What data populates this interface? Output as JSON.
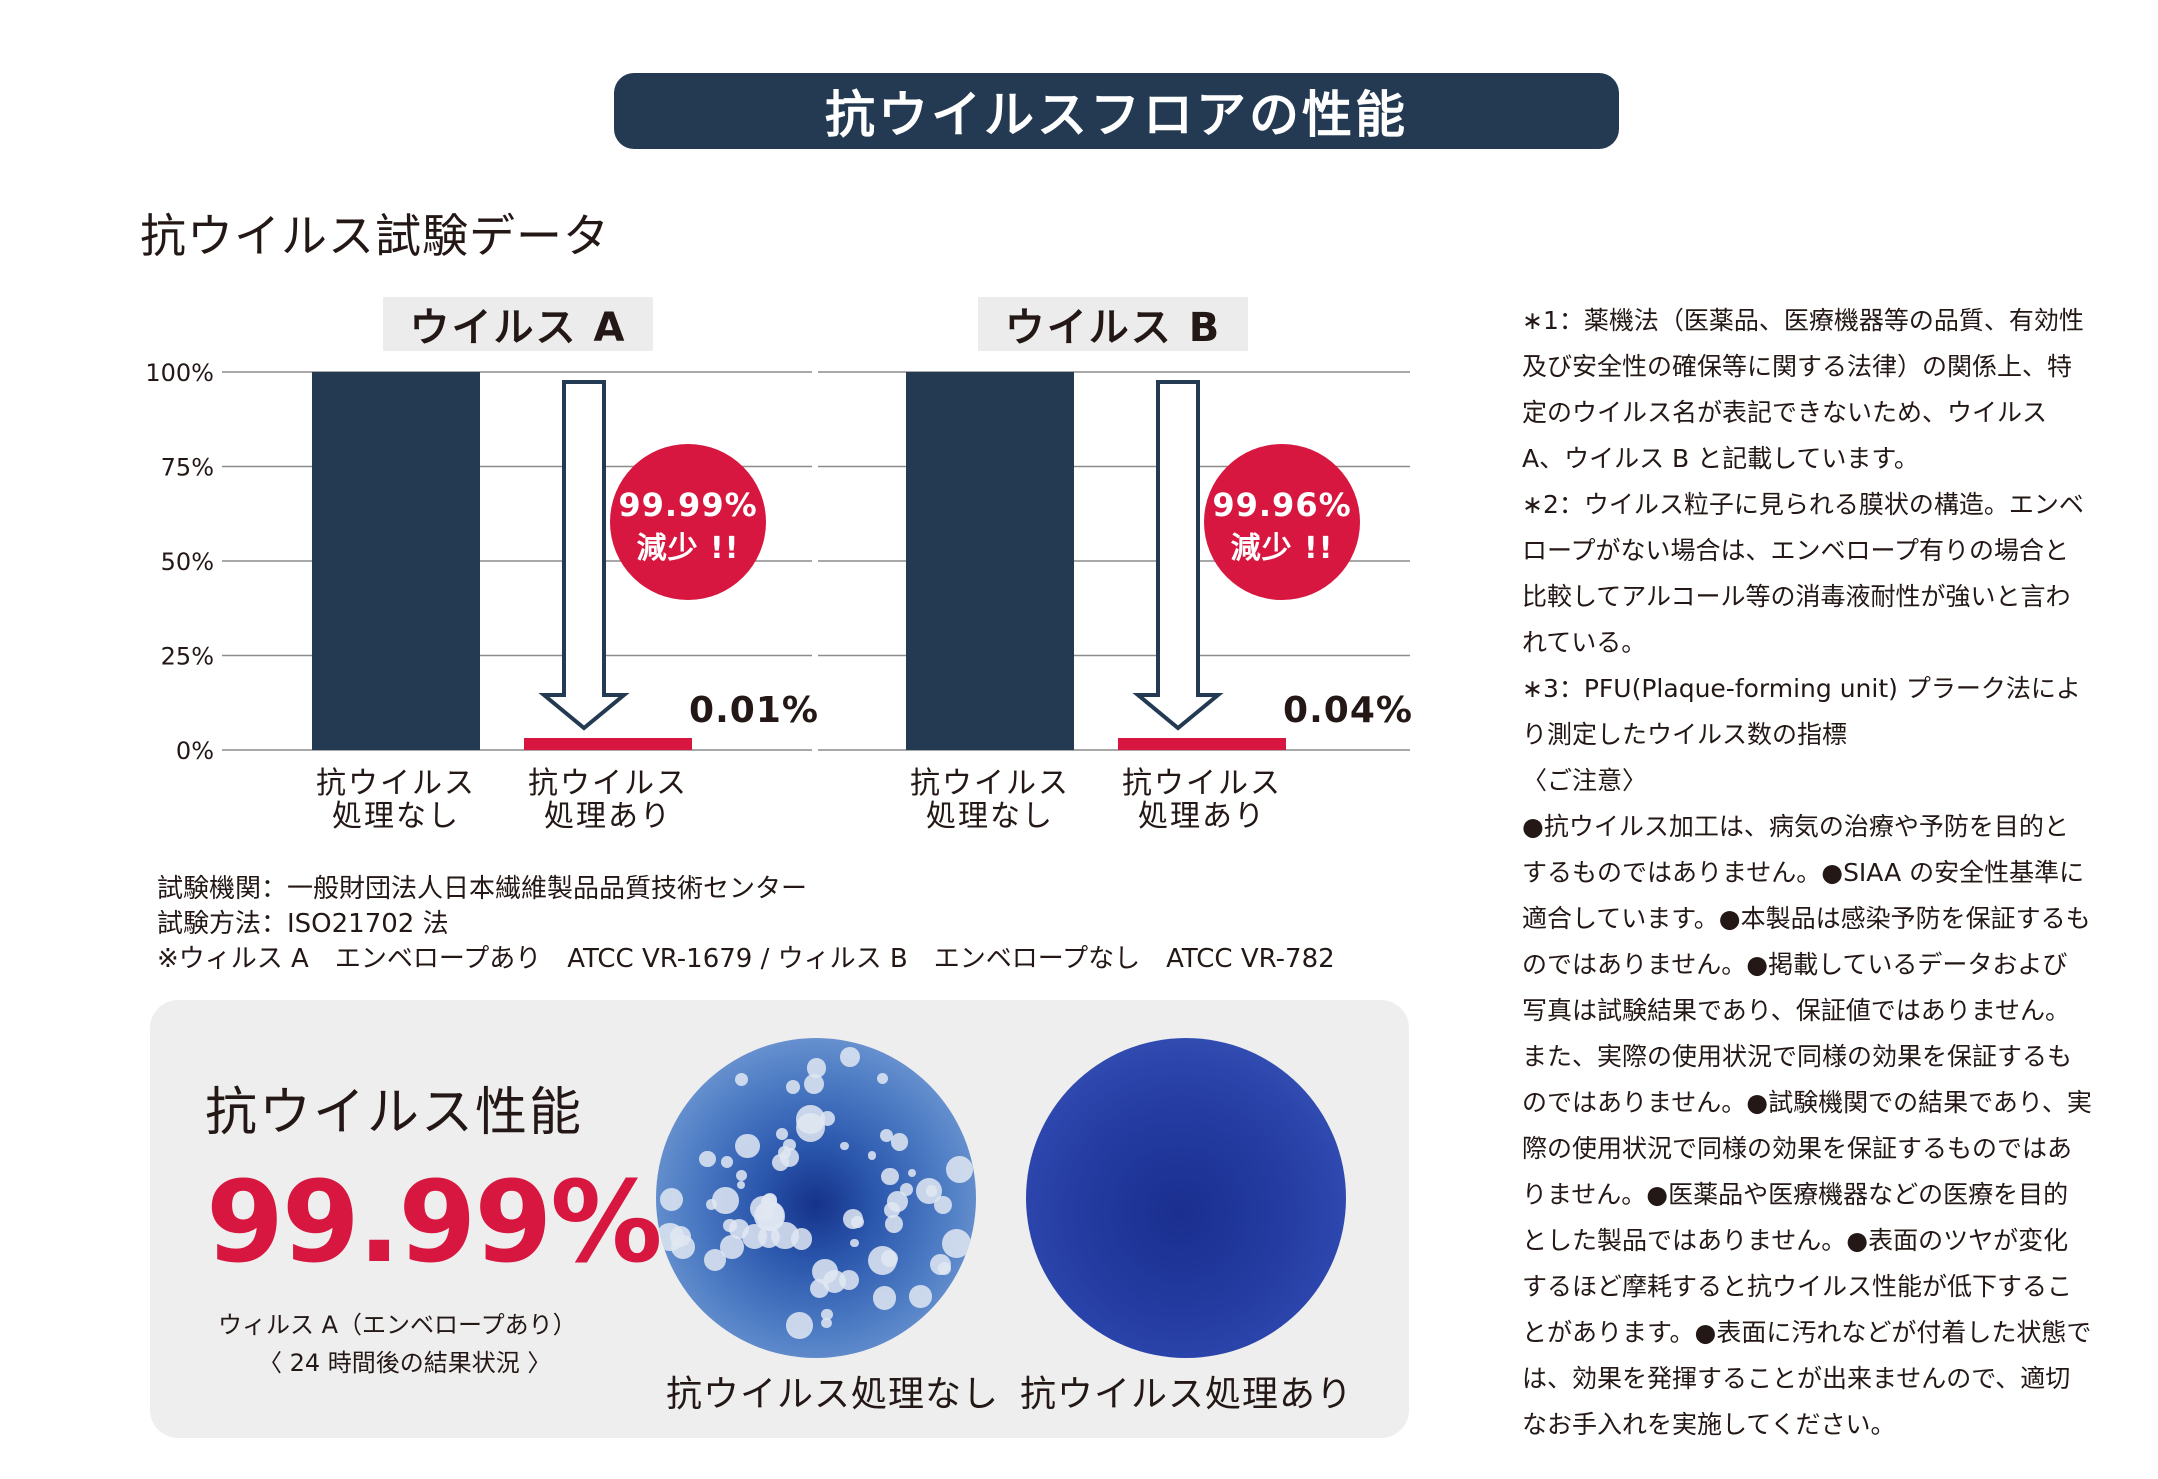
{
  "header": {
    "title": "抗ウイルスフロアの性能"
  },
  "section_title": "抗ウイルス試験データ",
  "chart_data": [
    {
      "type": "bar",
      "title": "ウイルス A",
      "categories": [
        "抗ウイルス\n処理なし",
        "抗ウイルス\n処理あり"
      ],
      "category_lines": [
        [
          "抗ウイルス",
          "処理なし"
        ],
        [
          "抗ウイルス",
          "処理あり"
        ]
      ],
      "values": [
        100,
        0.01
      ],
      "value_label": "0.01%",
      "reduction_badge": [
        "99.99%",
        "減少 !!"
      ],
      "ylim": [
        0,
        100
      ],
      "yticks": [
        "0%",
        "25%",
        "50%",
        "75%",
        "100%"
      ],
      "grid": true
    },
    {
      "type": "bar",
      "title": "ウイルス B",
      "categories": [
        "抗ウイルス\n処理なし",
        "抗ウイルス\n処理あり"
      ],
      "category_lines": [
        [
          "抗ウイルス",
          "処理なし"
        ],
        [
          "抗ウイルス",
          "処理あり"
        ]
      ],
      "values": [
        100,
        0.04
      ],
      "value_label": "0.04%",
      "reduction_badge": [
        "99.96%",
        "減少 !!"
      ],
      "ylim": [
        0,
        100
      ],
      "yticks": [
        "0%",
        "25%",
        "50%",
        "75%",
        "100%"
      ],
      "grid": true
    }
  ],
  "colors": {
    "bar_untreated": "#233a52",
    "bar_treated": "#d7173f",
    "badge": "#d7173f",
    "banner": "#233a52"
  },
  "test_notes": [
    "試験機関：一般財団法人日本繊維製品品質技術センター",
    "試験方法：ISO21702 法",
    "※ウィルス A　エンベロープあり　ATCC VR-1679 / ウィルス B　エンベロープなし　ATCC VR-782"
  ],
  "performance": {
    "title": "抗ウイルス性能",
    "value": "99.99%",
    "subtitle_line1": "ウィルス A（エンベロープあり）",
    "subtitle_line2": "〈 24 時間後の結果状況 〉",
    "caption_before": "抗ウイルス処理なし",
    "caption_after": "抗ウイルス処理あり"
  },
  "side_notes": [
    "∗1：薬機法（医薬品、医療機器等の品質、有効性及び安全性の確保等に関する法律）の関係上、特定のウイルス名が表記できないため、ウイルス A、ウイルス B と記載しています。",
    "∗2：ウイルス粒子に見られる膜状の構造。エンベロープがない場合は、エンベロープ有りの場合と比較してアルコール等の消毒液耐性が強いと言われている。",
    "∗3：PFU(Plaque-forming unit) プラーク法により測定したウイルス数の指標",
    "〈ご注意〉",
    "●抗ウイルス加工は、病気の治療や予防を目的とするものではありません。●SIAA の安全性基準に適合しています。●本製品は感染予防を保証するものではありません。●掲載しているデータおよび写真は試験結果であり、保証値ではありません。また、実際の使用状況で同様の効果を保証するものではありません。●試験機関での結果であり、実際の使用状況で同様の効果を保証するものではありません。●医薬品や医療機器などの医療を目的とした製品ではありません。●表面のツヤが変化するほど摩耗すると抗ウイルス性能が低下することがあります。●表面に汚れなどが付着した状態では、効果を発揮することが出来ませんので、適切なお手入れを実施してください。"
  ]
}
